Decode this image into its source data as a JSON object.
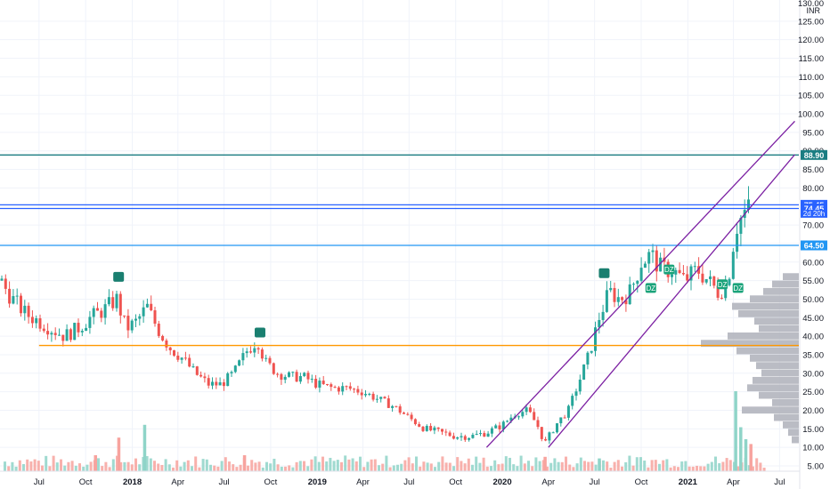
{
  "chart_data": {
    "type": "candlestick",
    "currency": "INR",
    "y_axis": {
      "min": 2,
      "max": 130,
      "ticks": [
        5,
        10,
        15,
        20,
        25,
        30,
        35,
        40,
        45,
        50,
        55,
        60,
        65,
        70,
        75,
        80,
        85,
        90,
        95,
        100,
        105,
        110,
        115,
        120,
        125
      ],
      "tick_labels": [
        "5.00",
        "10.00",
        "15.00",
        "20.00",
        "25.00",
        "30.00",
        "35.00",
        "40.00",
        "45.00",
        "50.00",
        "55.00",
        "60.00",
        "65.00",
        "70.00",
        "75.00",
        "80.00",
        "85.00",
        "90.00",
        "95.00",
        "100.00",
        "105.00",
        "110.00",
        "115.00",
        "120.00",
        "125.00"
      ],
      "top_partial_label": "130.00",
      "scale": "linear",
      "position": "right"
    },
    "x_axis": {
      "start": "2017-04-15",
      "end": "2021-08-08",
      "ticks": [
        {
          "date": "2017-07-01",
          "label": "Jul"
        },
        {
          "date": "2017-10-01",
          "label": "Oct"
        },
        {
          "date": "2018-01-01",
          "label": "2018"
        },
        {
          "date": "2018-04-01",
          "label": "Apr"
        },
        {
          "date": "2018-07-01",
          "label": "Jul"
        },
        {
          "date": "2018-10-01",
          "label": "Oct"
        },
        {
          "date": "2019-01-01",
          "label": "2019"
        },
        {
          "date": "2019-04-01",
          "label": "Apr"
        },
        {
          "date": "2019-07-01",
          "label": "Jul"
        },
        {
          "date": "2019-10-01",
          "label": "Oct"
        },
        {
          "date": "2020-01-01",
          "label": "2020"
        },
        {
          "date": "2020-04-01",
          "label": "Apr"
        },
        {
          "date": "2020-07-01",
          "label": "Jul"
        },
        {
          "date": "2020-10-01",
          "label": "Oct"
        },
        {
          "date": "2021-01-01",
          "label": "2021"
        },
        {
          "date": "2021-04-01",
          "label": "Apr"
        },
        {
          "date": "2021-07-01",
          "label": "Jul"
        }
      ]
    },
    "grid": true,
    "price_path": [
      [
        "2017-04-15",
        55
      ],
      [
        "2017-05-10",
        50
      ],
      [
        "2017-06-05",
        46
      ],
      [
        "2017-07-01",
        44
      ],
      [
        "2017-07-25",
        42
      ],
      [
        "2017-08-20",
        40
      ],
      [
        "2017-09-15",
        42
      ],
      [
        "2017-10-10",
        45
      ],
      [
        "2017-11-05",
        47
      ],
      [
        "2017-12-01",
        50
      ],
      [
        "2017-12-20",
        42
      ],
      [
        "2018-01-10",
        44
      ],
      [
        "2018-01-30",
        48
      ],
      [
        "2018-02-20",
        42
      ],
      [
        "2018-03-15",
        37
      ],
      [
        "2018-04-10",
        34
      ],
      [
        "2018-05-05",
        30
      ],
      [
        "2018-06-01",
        27
      ],
      [
        "2018-06-25",
        27
      ],
      [
        "2018-07-20",
        30
      ],
      [
        "2018-08-15",
        36
      ],
      [
        "2018-09-05",
        39
      ],
      [
        "2018-09-20",
        33
      ],
      [
        "2018-10-15",
        30
      ],
      [
        "2018-11-10",
        29
      ],
      [
        "2018-12-05",
        29
      ],
      [
        "2019-01-01",
        27
      ],
      [
        "2019-02-01",
        26
      ],
      [
        "2019-03-01",
        26
      ],
      [
        "2019-04-01",
        25
      ],
      [
        "2019-05-01",
        23
      ],
      [
        "2019-06-01",
        21
      ],
      [
        "2019-07-01",
        18
      ],
      [
        "2019-08-01",
        15
      ],
      [
        "2019-09-01",
        14
      ],
      [
        "2019-10-01",
        13
      ],
      [
        "2019-11-01",
        13
      ],
      [
        "2019-12-01",
        14
      ],
      [
        "2020-01-01",
        16
      ],
      [
        "2020-01-25",
        19
      ],
      [
        "2020-02-20",
        20
      ],
      [
        "2020-03-10",
        16
      ],
      [
        "2020-03-25",
        11
      ],
      [
        "2020-04-15",
        16
      ],
      [
        "2020-05-10",
        20
      ],
      [
        "2020-06-01",
        28
      ],
      [
        "2020-06-20",
        35
      ],
      [
        "2020-07-10",
        45
      ],
      [
        "2020-07-30",
        52
      ],
      [
        "2020-08-20",
        50
      ],
      [
        "2020-09-10",
        52
      ],
      [
        "2020-10-01",
        60
      ],
      [
        "2020-10-20",
        62
      ],
      [
        "2020-11-10",
        58
      ],
      [
        "2020-12-01",
        58
      ],
      [
        "2020-12-25",
        55
      ],
      [
        "2021-01-20",
        58
      ],
      [
        "2021-02-10",
        55
      ],
      [
        "2021-03-01",
        52
      ],
      [
        "2021-03-20",
        54
      ],
      [
        "2021-04-05",
        69
      ],
      [
        "2021-04-20",
        73
      ],
      [
        "2021-05-05",
        75
      ]
    ],
    "volume_scale_max": 100,
    "volume_bars": [
      {
        "date": "2017-12-05",
        "volume": 42,
        "color": "#f7a39e"
      },
      {
        "date": "2018-01-25",
        "volume": 58,
        "color": "#8fd4c8"
      },
      {
        "date": "2017-10-20",
        "volume": 20,
        "color": "#f7a39e"
      },
      {
        "date": "2018-08-10",
        "volume": 20,
        "color": "#f7a39e"
      },
      {
        "date": "2020-03-25",
        "volume": 18,
        "color": "#f7a39e"
      },
      {
        "date": "2020-07-10",
        "volume": 16,
        "color": "#8fd4c8"
      },
      {
        "date": "2021-04-05",
        "volume": 100,
        "color": "#8fd4c8"
      },
      {
        "date": "2021-04-15",
        "volume": 55,
        "color": "#8fd4c8"
      },
      {
        "date": "2021-04-25",
        "volume": 40,
        "color": "#8fd4c8"
      },
      {
        "date": "2021-05-05",
        "volume": 34,
        "color": "#f7a39e"
      }
    ],
    "horizontal_lines": [
      {
        "price": 88.9,
        "label": "88.90",
        "color": "#1b7d82"
      },
      {
        "price": 75.45,
        "label": "75.45",
        "color": "#2962ff"
      },
      {
        "price": 74.45,
        "label": "74.45",
        "color": "#2962ff"
      },
      {
        "price": 64.5,
        "label": "64.50",
        "color": "#2196f3"
      },
      {
        "price": 37.5,
        "label": "",
        "color": "#ff9800",
        "from": "2017-07-01"
      }
    ],
    "current_price_sublabel": "2d 20h",
    "channel_lines": [
      {
        "from": [
          "2019-12-01",
          10
        ],
        "to": [
          "2021-07-31",
          98
        ],
        "color": "#7b1fa2"
      },
      {
        "from": [
          "2020-04-01",
          10
        ],
        "to": [
          "2021-07-31",
          89
        ],
        "color": "#7b1fa2"
      }
    ],
    "markers": [
      {
        "date": "2017-12-05",
        "price": 56,
        "text": "",
        "color": "#1a7f70"
      },
      {
        "date": "2018-09-10",
        "price": 41,
        "text": "",
        "color": "#1a7f70"
      },
      {
        "date": "2020-07-20",
        "price": 57,
        "text": "",
        "color": "#1a7f70"
      },
      {
        "date": "2020-10-20",
        "price": 53,
        "text": "DZ",
        "color": "#1aa37a"
      },
      {
        "date": "2020-11-25",
        "price": 58,
        "text": "DZ",
        "color": "#1aa37a"
      },
      {
        "date": "2021-03-10",
        "price": 54,
        "text": "DZ",
        "color": "#1aa37a"
      },
      {
        "date": "2021-04-10",
        "price": 53,
        "text": "DZ",
        "color": "#1aa37a"
      }
    ],
    "volume_profile": [
      {
        "price": 56,
        "width": 18
      },
      {
        "price": 54,
        "width": 30
      },
      {
        "price": 52,
        "width": 40
      },
      {
        "price": 50,
        "width": 55
      },
      {
        "price": 48,
        "width": 75
      },
      {
        "price": 46,
        "width": 68
      },
      {
        "price": 44,
        "width": 50
      },
      {
        "price": 42,
        "width": 45
      },
      {
        "price": 40,
        "width": 80
      },
      {
        "price": 38,
        "width": 110
      },
      {
        "price": 36,
        "width": 70
      },
      {
        "price": 34,
        "width": 55
      },
      {
        "price": 32,
        "width": 48
      },
      {
        "price": 30,
        "width": 42
      },
      {
        "price": 28,
        "width": 52
      },
      {
        "price": 26,
        "width": 58
      },
      {
        "price": 24,
        "width": 45
      },
      {
        "price": 22,
        "width": 30
      },
      {
        "price": 20,
        "width": 64
      },
      {
        "price": 18,
        "width": 28
      },
      {
        "price": 16,
        "width": 18
      },
      {
        "price": 14,
        "width": 12
      },
      {
        "price": 12,
        "width": 8
      }
    ],
    "colors": {
      "up": "#26a69a",
      "down": "#ef5350",
      "grid": "#f0f3fa",
      "axis_text": "#131722",
      "profile": "#b2b5be"
    }
  }
}
